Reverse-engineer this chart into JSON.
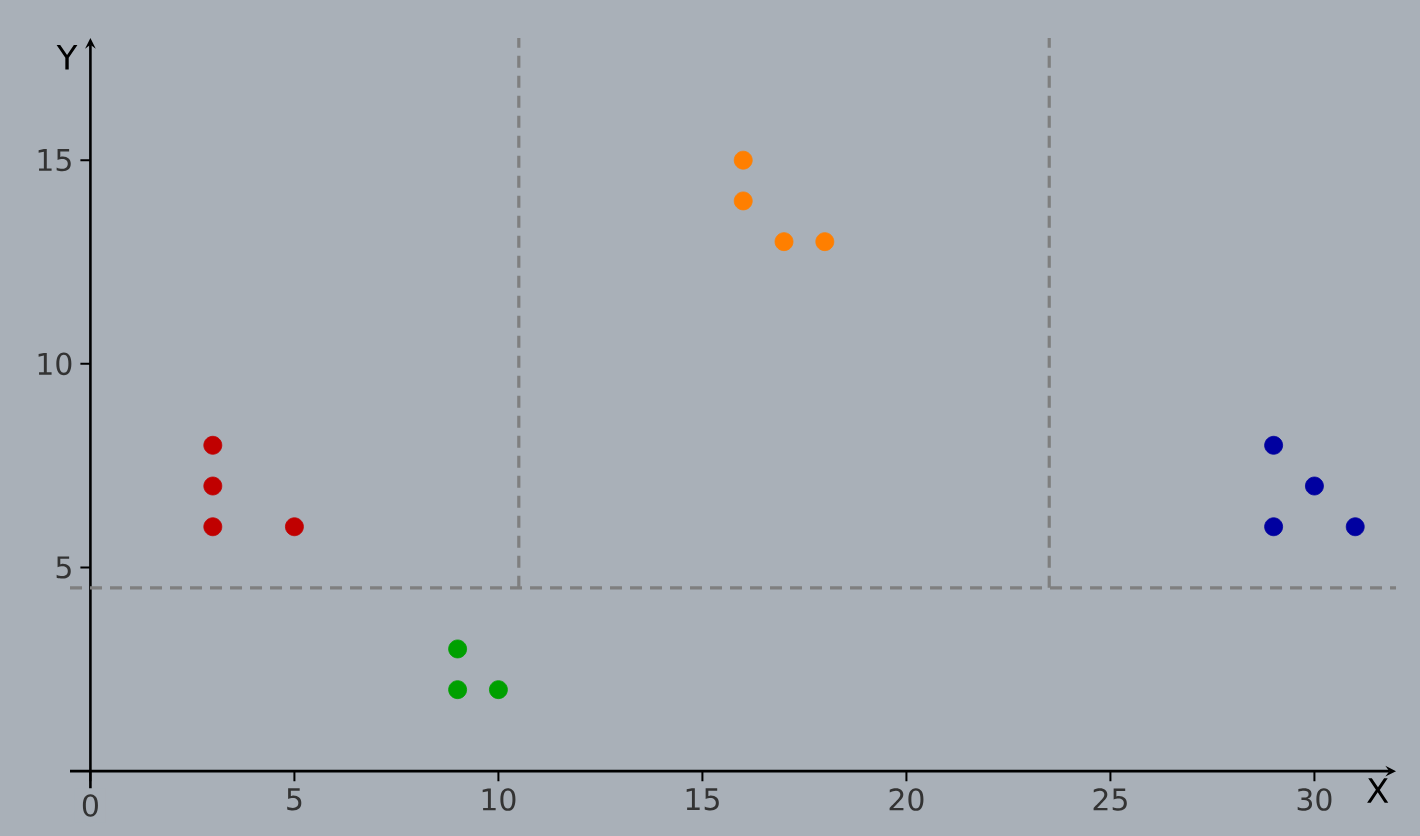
{
  "chart_data": {
    "type": "scatter",
    "xlabel": "X",
    "ylabel": "Y",
    "xlim": [
      -0.5,
      32
    ],
    "ylim": [
      -1.2,
      18
    ],
    "xticks": [
      0,
      5,
      10,
      15,
      20,
      25,
      30
    ],
    "yticks": [
      5,
      10,
      15
    ],
    "marker": "circle",
    "grid": false,
    "series": [
      {
        "color": "#c00000",
        "x": [
          3,
          3,
          3,
          5
        ],
        "values": [
          8,
          7,
          6,
          6
        ]
      },
      {
        "color": "#00a000",
        "x": [
          9,
          9,
          10
        ],
        "values": [
          3,
          2,
          2
        ]
      },
      {
        "color": "#ff7f00",
        "x": [
          16,
          16,
          17,
          18
        ],
        "values": [
          15,
          14,
          13,
          13
        ]
      },
      {
        "color": "#0000a0",
        "x": [
          29,
          30,
          29,
          31
        ],
        "values": [
          8,
          7,
          6,
          6
        ]
      }
    ],
    "ref_lines": [
      {
        "axis": "y",
        "value": 4.5,
        "color": "#7f7f7f",
        "line_style": "dashed"
      },
      {
        "axis": "x",
        "value": 10.5,
        "color": "#7f7f7f",
        "line_style": "dashed"
      },
      {
        "axis": "x",
        "value": 23.5,
        "color": "#7f7f7f",
        "line_style": "dashed"
      }
    ]
  }
}
